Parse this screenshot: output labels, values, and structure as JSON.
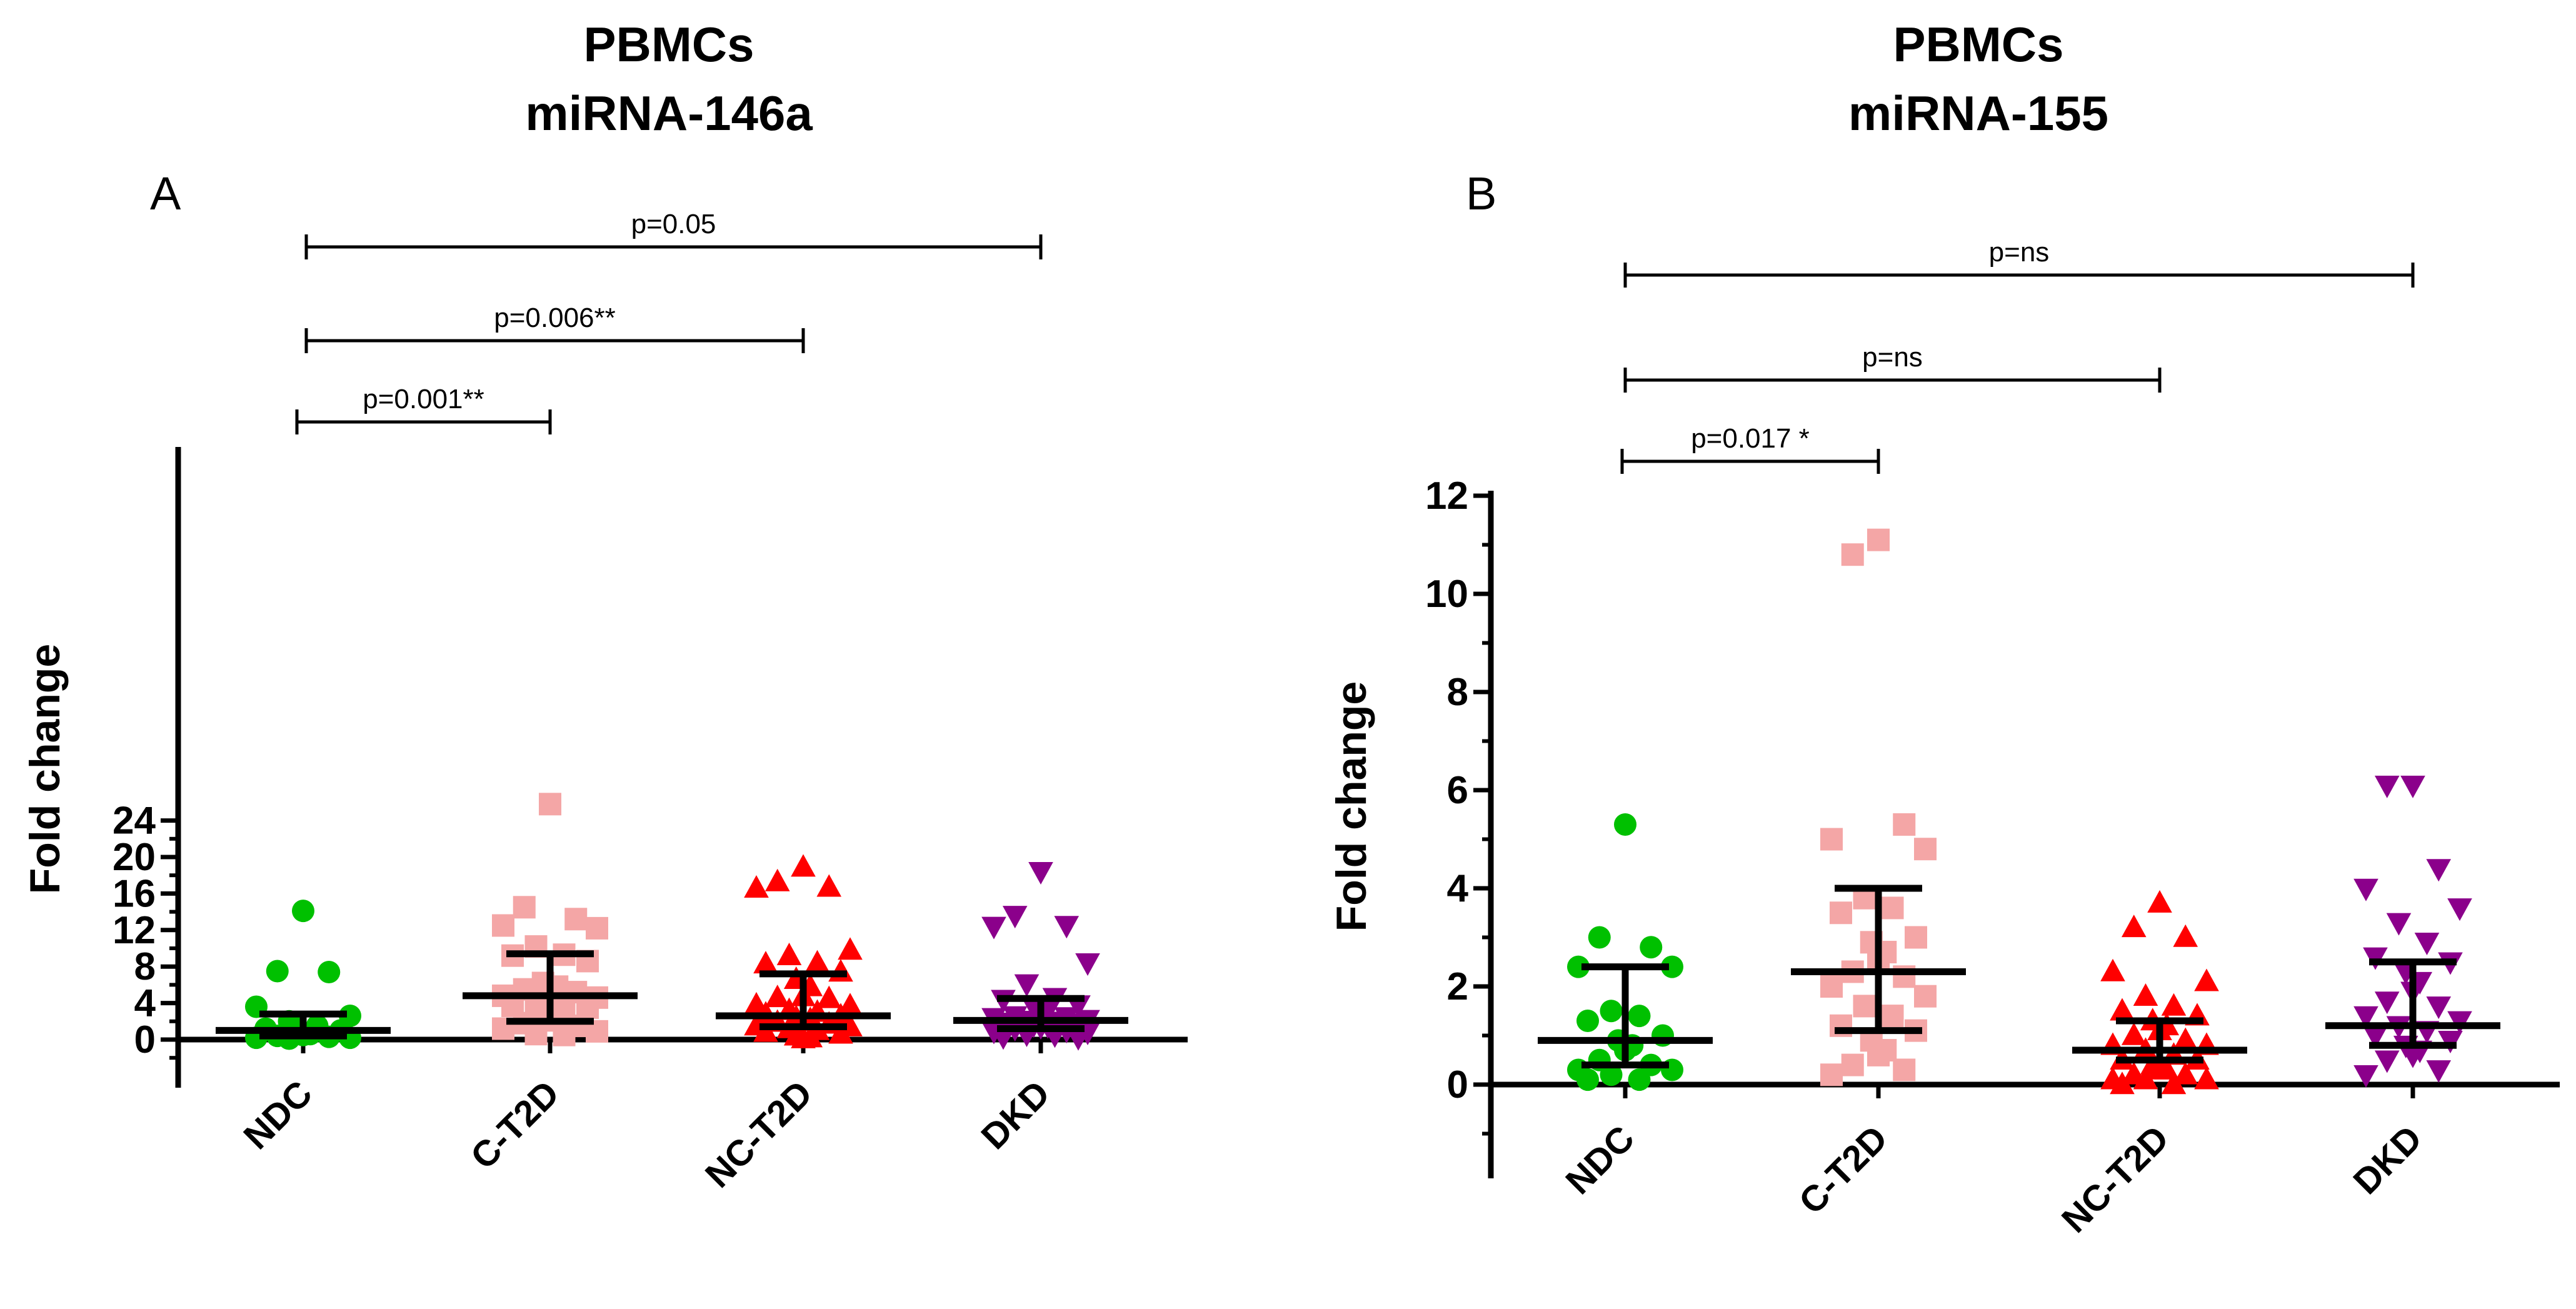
{
  "chart_data": [
    {
      "type": "scatter",
      "panel": "A",
      "title": [
        "PBMCs",
        "miRNA-146a"
      ],
      "ylabel": "Fold change",
      "categories": [
        "NDC",
        "C-T2D",
        "NC-T2D",
        "DKD"
      ],
      "yticks": [
        0,
        4,
        8,
        12,
        16,
        20,
        24
      ],
      "ylim": [
        -2,
        26
      ],
      "series": [
        {
          "category": "NDC",
          "color": "#00c000",
          "marker": "circle",
          "values": [
            14.1,
            7.5,
            7.4,
            3.6,
            2.6,
            2.0,
            1.5,
            1.2,
            1.0,
            0.8,
            0.6,
            0.5,
            0.4,
            0.3,
            0.2,
            0.2,
            0.1
          ],
          "median": 1.0,
          "q1": 0.4,
          "q3": 2.8
        },
        {
          "category": "C-T2D",
          "color": "#f4a6a6",
          "marker": "square",
          "values": [
            25.8,
            14.5,
            13.2,
            12.5,
            12.2,
            10.2,
            9.3,
            9.2,
            8.6,
            6.2,
            5.8,
            5.7,
            5.5,
            5.2,
            4.8,
            4.6,
            4.2,
            3.9,
            3.7,
            3.5,
            3.3,
            2.3,
            2.1,
            1.8,
            1.5,
            1.2,
            0.9,
            0.6,
            0.5
          ],
          "median": 4.8,
          "q1": 2.0,
          "q3": 9.4
        },
        {
          "category": "NC-T2D",
          "color": "#ff0000",
          "marker": "triangle-up",
          "values": [
            18.9,
            17.3,
            16.7,
            16.6,
            9.8,
            9.2,
            8.4,
            8.3,
            7.4,
            6.6,
            5.8,
            4.7,
            4.6,
            4.5,
            3.8,
            3.7,
            3.2,
            3.0,
            2.8,
            2.6,
            2.4,
            2.2,
            2.0,
            1.9,
            1.7,
            1.5,
            1.4,
            1.2,
            1.0,
            0.8,
            0.6,
            0.4,
            0.2,
            0.1
          ],
          "median": 2.6,
          "q1": 1.4,
          "q3": 7.2
        },
        {
          "category": "DKD",
          "color": "#8b008b",
          "marker": "triangle-down",
          "values": [
            18.4,
            13.6,
            12.5,
            12.4,
            8.4,
            6.1,
            4.6,
            4.4,
            3.8,
            3.6,
            3.2,
            2.8,
            2.6,
            2.5,
            2.4,
            2.2,
            2.1,
            2.0,
            1.9,
            1.8,
            1.6,
            1.5,
            1.4,
            1.2,
            1.0,
            0.9,
            0.8,
            0.6,
            0.5,
            0.3,
            0.2
          ],
          "median": 2.1,
          "q1": 1.2,
          "q3": 4.5
        }
      ],
      "comparisons": [
        {
          "from": "NDC",
          "to": "DKD",
          "label": "p=0.05"
        },
        {
          "from": "NDC",
          "to": "NC-T2D",
          "label": "p=0.006**"
        },
        {
          "from": "NDC",
          "to": "C-T2D",
          "label": "p=0.001**"
        }
      ]
    },
    {
      "type": "scatter",
      "panel": "B",
      "title": [
        "PBMCs",
        "miRNA-155"
      ],
      "ylabel": "Fold change",
      "categories": [
        "NDC",
        "C-T2D",
        "NC-T2D",
        "DKD"
      ],
      "yticks": [
        0,
        2,
        4,
        6,
        8,
        10,
        12
      ],
      "ylim": [
        -2,
        12
      ],
      "series": [
        {
          "category": "NDC",
          "color": "#00c000",
          "marker": "circle",
          "values": [
            5.3,
            3.0,
            2.8,
            2.4,
            2.4,
            1.5,
            1.4,
            1.3,
            1.0,
            0.9,
            0.8,
            0.7,
            0.5,
            0.4,
            0.3,
            0.3,
            0.2,
            0.1,
            0.1
          ],
          "median": 0.9,
          "q1": 0.4,
          "q3": 2.4
        },
        {
          "category": "C-T2D",
          "color": "#f4a6a6",
          "marker": "square",
          "values": [
            11.1,
            10.8,
            5.3,
            5.0,
            4.8,
            3.8,
            3.6,
            3.5,
            3.0,
            2.9,
            2.7,
            2.5,
            2.3,
            2.2,
            2.0,
            1.8,
            1.6,
            1.4,
            1.2,
            1.1,
            0.9,
            0.7,
            0.6,
            0.4,
            0.3,
            0.2
          ],
          "median": 2.3,
          "q1": 1.1,
          "q3": 4.0
        },
        {
          "category": "NC-T2D",
          "color": "#ff0000",
          "marker": "triangle-up",
          "values": [
            3.7,
            3.2,
            3.0,
            2.3,
            2.1,
            1.8,
            1.6,
            1.5,
            1.4,
            1.3,
            1.2,
            1.1,
            1.0,
            0.9,
            0.8,
            0.8,
            0.7,
            0.6,
            0.5,
            0.5,
            0.4,
            0.3,
            0.3,
            0.2,
            0.2,
            0.1,
            0.1,
            0.1,
            0.0,
            0.0
          ],
          "median": 0.7,
          "q1": 0.5,
          "q3": 1.3
        },
        {
          "category": "DKD",
          "color": "#8b008b",
          "marker": "triangle-down",
          "values": [
            6.1,
            6.1,
            4.4,
            4.0,
            3.6,
            3.3,
            2.9,
            2.6,
            2.5,
            2.3,
            2.1,
            1.9,
            1.7,
            1.6,
            1.4,
            1.3,
            1.2,
            1.1,
            1.0,
            0.9,
            0.8,
            0.7,
            0.6,
            0.5,
            0.3,
            0.2
          ],
          "median": 1.2,
          "q1": 0.8,
          "q3": 2.5
        }
      ],
      "comparisons": [
        {
          "from": "NDC",
          "to": "DKD",
          "label": "p=ns"
        },
        {
          "from": "NDC",
          "to": "NC-T2D",
          "label": "p=ns"
        },
        {
          "from": "NDC",
          "to": "C-T2D",
          "label": "p=0.017 *"
        }
      ]
    }
  ]
}
